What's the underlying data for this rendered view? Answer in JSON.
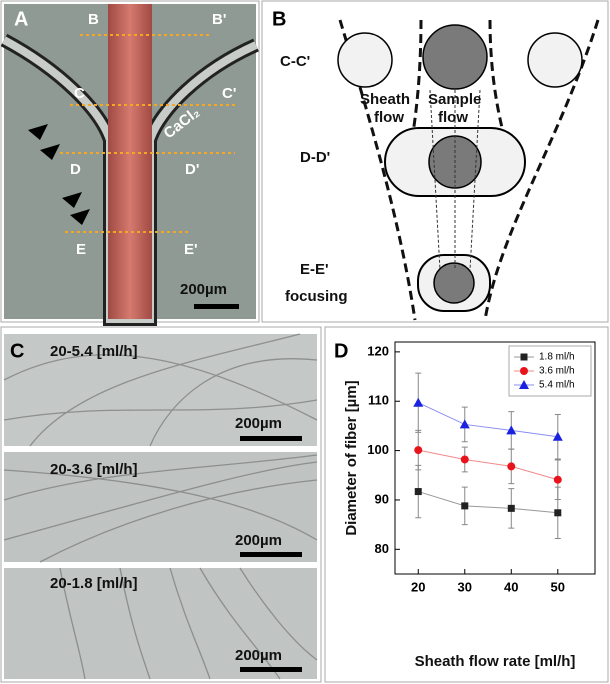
{
  "panel_a": {
    "label": "A",
    "markers": [
      "B",
      "B'",
      "C",
      "C'",
      "D",
      "D'",
      "E",
      "E'"
    ],
    "reagent": "CaCl₂",
    "scale_bar": "200µm"
  },
  "panel_b": {
    "label": "B",
    "cc": "C-C'",
    "sheath": [
      "Sheath",
      "flow"
    ],
    "sample": [
      "Sample",
      "flow"
    ],
    "dd": "D-D'",
    "ee": "E-E'",
    "focusing": "focusing"
  },
  "panel_c": {
    "label": "C",
    "images": [
      {
        "caption": "20-5.4 [ml/h]",
        "scale_bar": "200µm"
      },
      {
        "caption": "20-3.6 [ml/h]",
        "scale_bar": "200µm"
      },
      {
        "caption": "20-1.8 [ml/h]",
        "scale_bar": "200µm"
      }
    ]
  },
  "chart_data": {
    "type": "line",
    "panel_label": "D",
    "xlabel": "Sheath flow rate [ml/h]",
    "ylabel": "Diameter of fiber [µm]",
    "x": [
      20,
      30,
      40,
      50
    ],
    "xlim": [
      15,
      58
    ],
    "xticks": [
      20,
      30,
      40,
      50
    ],
    "ylim": [
      75,
      122
    ],
    "yticks": [
      80,
      90,
      100,
      110,
      120
    ],
    "grid": false,
    "legend": "upper right",
    "series": [
      {
        "name": "1.8 ml/h",
        "color": "#222222",
        "line_color": "#999999",
        "marker": "square",
        "values": [
          91.7,
          88.8,
          88.3,
          87.4
        ],
        "errors": [
          5.3,
          3.8,
          4.0,
          5.2
        ]
      },
      {
        "name": "3.6 ml/h",
        "color": "#e8141c",
        "line_color": "#f08a8a",
        "marker": "circle",
        "values": [
          100.1,
          98.2,
          96.8,
          94.1
        ],
        "errors": [
          4.0,
          2.5,
          3.5,
          4.0
        ]
      },
      {
        "name": "5.4 ml/h",
        "color": "#1a22e0",
        "line_color": "#8a8ef0",
        "marker": "triangle",
        "values": [
          109.7,
          105.3,
          104.1,
          102.8
        ],
        "errors": [
          6.0,
          3.5,
          3.8,
          4.5
        ]
      }
    ]
  }
}
